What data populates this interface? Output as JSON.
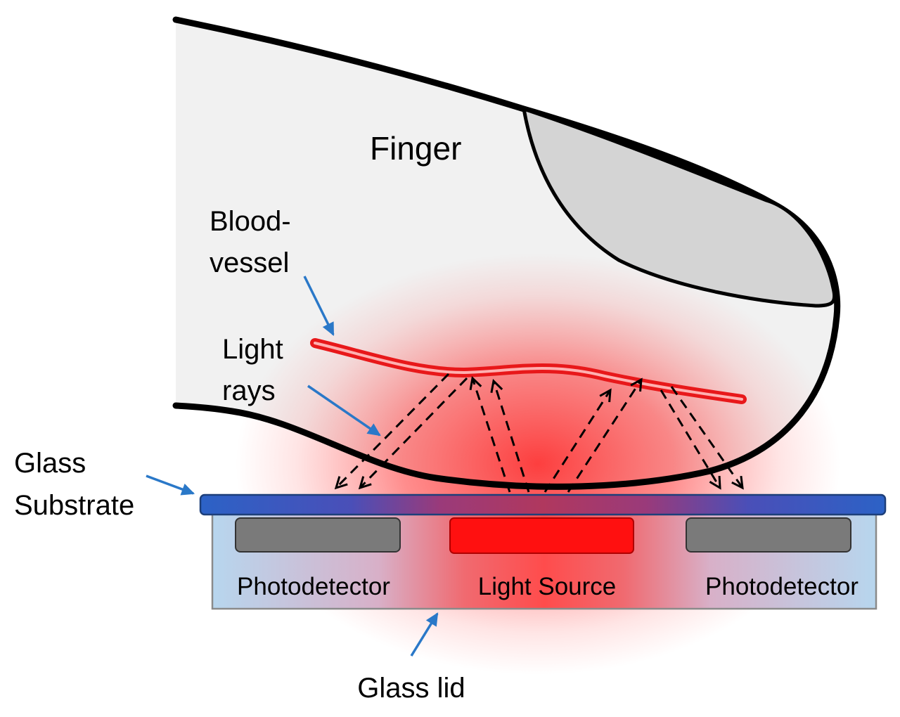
{
  "labels": {
    "finger": "Finger",
    "blood_vessel_line1": "Blood-",
    "blood_vessel_line2": "vessel",
    "light_rays_line1": "Light",
    "light_rays_line2": "rays",
    "glass_substrate_line1": "Glass",
    "glass_substrate_line2": "Substrate",
    "photodetector_left": "Photodetector",
    "light_source": "Light Source",
    "photodetector_right": "Photodetector",
    "glass_lid": "Glass lid"
  },
  "colors": {
    "finger_fill": "#f1f1f1",
    "nail_fill": "#d4d4d4",
    "outline": "#000000",
    "glow": "#ff1f1f",
    "blood_vessel": "#e8181a",
    "substrate_edge": "#2c62c6",
    "lid_fill": "#b7d6ee",
    "lid_border": "#8a8a8a",
    "photodetector": "#7a7a7a",
    "light_source": "#ff1010",
    "pointer_arrow": "#2a78c8"
  }
}
